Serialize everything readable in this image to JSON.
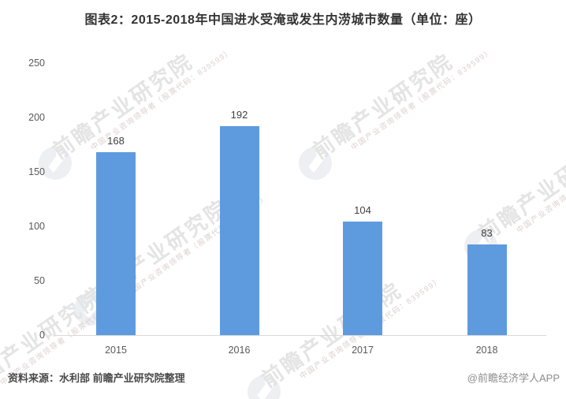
{
  "title": "图表2：2015-2018年中国进水受淹或发生内涝城市数量（单位：座）",
  "source_note": "资料来源：水利部 前瞻产业研究院整理",
  "credit": "@前瞻经济学人APP",
  "watermark": {
    "brand_text": "前瞻产业研究院",
    "sub_text": "中国产业咨询领导者（股票代码：839599）"
  },
  "colors": {
    "bar": "#5E9BDE",
    "title_text": "#333333",
    "axis_text": "#595959",
    "value_text": "#404040",
    "axis_line": "#d9d9d9",
    "watermark_text": "#e4e4e4",
    "watermark_logo": "#edeff2"
  },
  "chart_data": {
    "type": "bar",
    "categories": [
      "2015",
      "2016",
      "2017",
      "2018"
    ],
    "values": [
      168,
      192,
      104,
      83
    ],
    "title": "图表2：2015-2018年中国进水受淹或发生内涝城市数量（单位：座）",
    "xlabel": "",
    "ylabel": "",
    "unit": "座",
    "ylim": [
      0,
      250
    ],
    "yticks": [
      0,
      50,
      100,
      150,
      200,
      250
    ],
    "grid": false,
    "legend": false,
    "bar_labels_shown": true
  }
}
